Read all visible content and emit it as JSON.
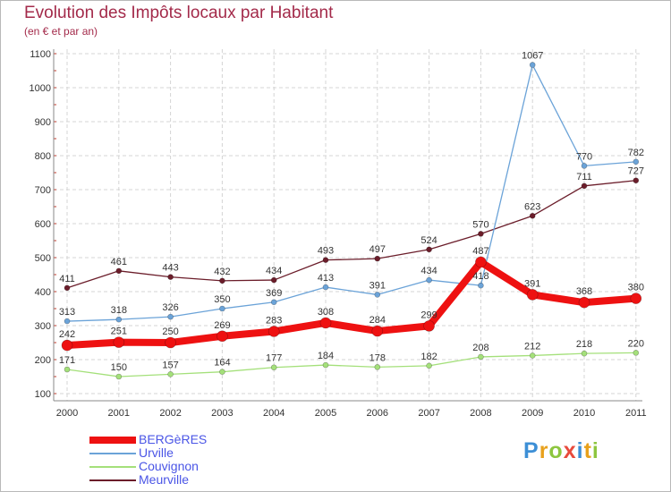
{
  "title": "Evolution des Impôts locaux par Habitant",
  "subtitle": "(en € et par an)",
  "logo": {
    "text": "Proxiti",
    "letter_colors": [
      "#3d8fd6",
      "#e8a11c",
      "#8dc63f",
      "#e84a3c",
      "#3d8fd6",
      "#e8a11c",
      "#8dc63f"
    ]
  },
  "chart_data": {
    "type": "line",
    "title": "Evolution des Impôts locaux par Habitant",
    "subtitle": "(en € et par an)",
    "xlabel": "",
    "ylabel": "",
    "categories": [
      "2000",
      "2001",
      "2002",
      "2003",
      "2004",
      "2005",
      "2006",
      "2007",
      "2008",
      "2009",
      "2010",
      "2011"
    ],
    "ylim": [
      100,
      1100
    ],
    "yticks": [
      100,
      200,
      300,
      400,
      500,
      600,
      700,
      800,
      900,
      1000,
      1100
    ],
    "grid": true,
    "legend_position": "bottom-left",
    "series": [
      {
        "name": "Meurville",
        "color": "#6b1d2a",
        "values": [
          411,
          461,
          443,
          432,
          434,
          493,
          497,
          524,
          570,
          623,
          711,
          727
        ]
      },
      {
        "name": "Urville",
        "color": "#6ba3d8",
        "values": [
          313,
          318,
          326,
          350,
          369,
          413,
          391,
          434,
          418,
          1067,
          770,
          782
        ]
      },
      {
        "name": "Couvignon",
        "color": "#a4e07a",
        "values": [
          171,
          150,
          157,
          164,
          177,
          184,
          178,
          182,
          208,
          212,
          218,
          220
        ]
      },
      {
        "name": "BERGèRES",
        "color": "#ee1111",
        "values": [
          242,
          251,
          250,
          269,
          283,
          308,
          284,
          299,
          487,
          391,
          368,
          380
        ]
      }
    ],
    "legend": [
      "BERGèRES",
      "Urville",
      "Couvignon",
      "Meurville"
    ]
  }
}
